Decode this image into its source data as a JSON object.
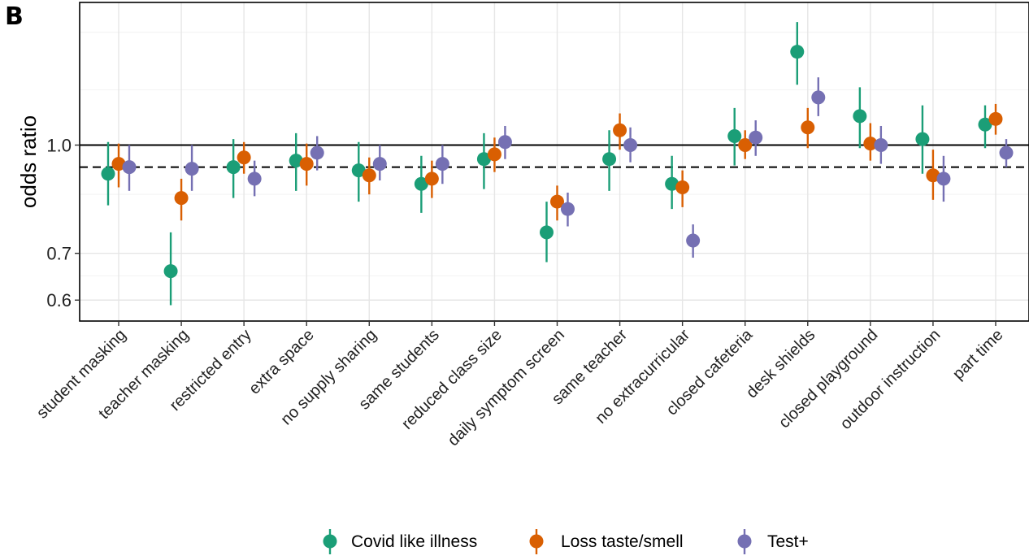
{
  "panel_label": "B",
  "chart_data": {
    "type": "scatter",
    "subtype": "pointrange",
    "title": "",
    "xlabel": "",
    "ylabel": "odds ratio",
    "y_scale": "log",
    "ylim": [
      0.56,
      1.6
    ],
    "y_ticks": [
      0.6,
      0.7,
      1.0
    ],
    "y_tick_labels": [
      "0.6",
      "0.7",
      "1.0"
    ],
    "reference_lines": [
      {
        "y": 1.0,
        "style": "solid"
      },
      {
        "y": 0.93,
        "style": "dashed"
      }
    ],
    "grid": true,
    "legend_position": "bottom",
    "categories": [
      "student masking",
      "teacher masking",
      "restricted entry",
      "extra space",
      "no supply sharing",
      "same students",
      "reduced class size",
      "daily symptom screen",
      "same teacher",
      "no extracurricular",
      "closed cafeteria",
      "desk shields",
      "closed playground",
      "outdoor instruction",
      "part time"
    ],
    "series": [
      {
        "name": "Covid like illness",
        "color": "#1b9e77",
        "values": [
          0.91,
          0.66,
          0.93,
          0.95,
          0.92,
          0.88,
          0.955,
          0.75,
          0.955,
          0.88,
          1.03,
          1.36,
          1.1,
          1.02,
          1.07
        ],
        "lower": [
          0.82,
          0.59,
          0.84,
          0.86,
          0.83,
          0.8,
          0.865,
          0.68,
          0.86,
          0.81,
          0.935,
          1.22,
          0.99,
          0.91,
          0.99
        ],
        "upper": [
          1.01,
          0.75,
          1.02,
          1.04,
          1.01,
          0.965,
          1.04,
          0.83,
          1.05,
          0.965,
          1.13,
          1.5,
          1.21,
          1.14,
          1.14
        ]
      },
      {
        "name": "Loss taste/smell",
        "color": "#d95f02",
        "values": [
          0.94,
          0.84,
          0.96,
          0.94,
          0.905,
          0.895,
          0.97,
          0.83,
          1.05,
          0.87,
          1.0,
          1.06,
          1.005,
          0.905,
          1.09
        ],
        "lower": [
          0.87,
          0.78,
          0.91,
          0.875,
          0.85,
          0.84,
          0.915,
          0.78,
          0.985,
          0.815,
          0.955,
          0.99,
          0.95,
          0.835,
          1.035
        ],
        "upper": [
          1.005,
          0.895,
          1.01,
          1.005,
          0.96,
          0.95,
          1.025,
          0.875,
          1.11,
          0.92,
          1.05,
          1.13,
          1.075,
          0.985,
          1.145
        ]
      },
      {
        "name": "Test+",
        "color": "#7570b3",
        "values": [
          0.93,
          0.925,
          0.895,
          0.975,
          0.94,
          0.94,
          1.01,
          0.81,
          1.0,
          0.73,
          1.025,
          1.17,
          1.0,
          0.895,
          0.975
        ],
        "lower": [
          0.86,
          0.86,
          0.845,
          0.92,
          0.89,
          0.88,
          0.955,
          0.765,
          0.945,
          0.69,
          0.965,
          1.1,
          0.94,
          0.83,
          0.93
        ],
        "upper": [
          1.0,
          1.0,
          0.95,
          1.03,
          1.0,
          1.0,
          1.065,
          0.855,
          1.06,
          0.77,
          1.085,
          1.25,
          1.065,
          0.965,
          1.02
        ]
      }
    ]
  }
}
